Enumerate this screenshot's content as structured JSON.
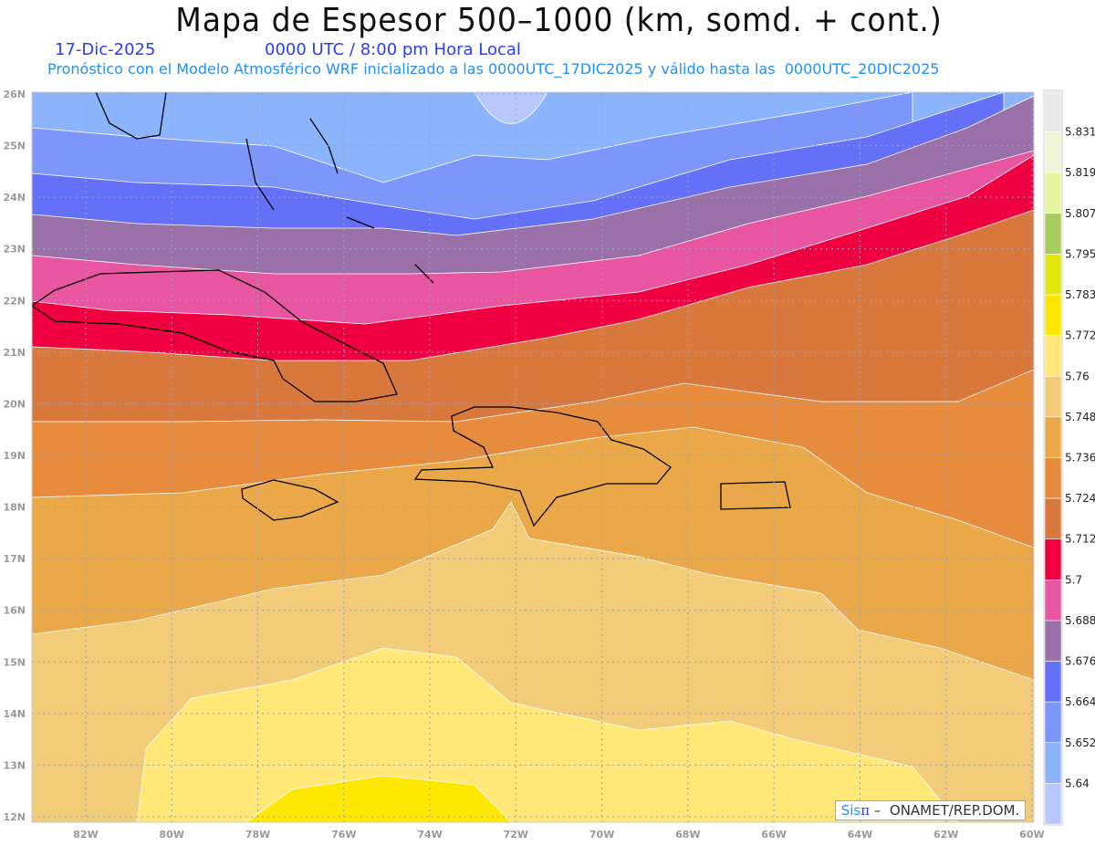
{
  "header": {
    "title": "Mapa de Espesor 500–1000 (km, somd. + cont.)",
    "date": "17-Dic-2025",
    "time": "0000 UTC / 8:00 pm Hora Local",
    "info": "Pronóstico con el Modelo Atmosférico WRF inicializado a las 0000UTC_17DIC2025 y válido hasta las  0000UTC_20DIC2025"
  },
  "map": {
    "lon_labels": [
      "82W",
      "80W",
      "78W",
      "76W",
      "74W",
      "72W",
      "70W",
      "68W",
      "66W",
      "64W",
      "62W",
      "60W"
    ],
    "lat_labels": [
      "26N",
      "25N",
      "24N",
      "23N",
      "22N",
      "21N",
      "20N",
      "19N",
      "18N",
      "17N",
      "16N",
      "15N",
      "14N",
      "13N",
      "12N"
    ]
  },
  "colorbar": {
    "labels": [
      "5.831",
      "5.819",
      "5.807",
      "5.795",
      "5.783",
      "5.772",
      "5.76",
      "5.748",
      "5.736",
      "5.724",
      "5.712",
      "5.7",
      "5.688",
      "5.676",
      "5.664",
      "5.652",
      "5.64"
    ],
    "colors": [
      "#e8e8e8",
      "#f0f5d8",
      "#e6f5a0",
      "#a8cc60",
      "#e0e810",
      "#ffe800",
      "#ffe878",
      "#f2cc78",
      "#eba848",
      "#e68c3c",
      "#d8783c",
      "#f00040",
      "#e855a0",
      "#9a70a8",
      "#6470f8",
      "#7c96fc",
      "#8cb4fc",
      "#b8c8fc"
    ]
  },
  "credit": {
    "brand": "Sis",
    "pi": "π",
    "text": " –  ONAMET/REP.DOM."
  }
}
